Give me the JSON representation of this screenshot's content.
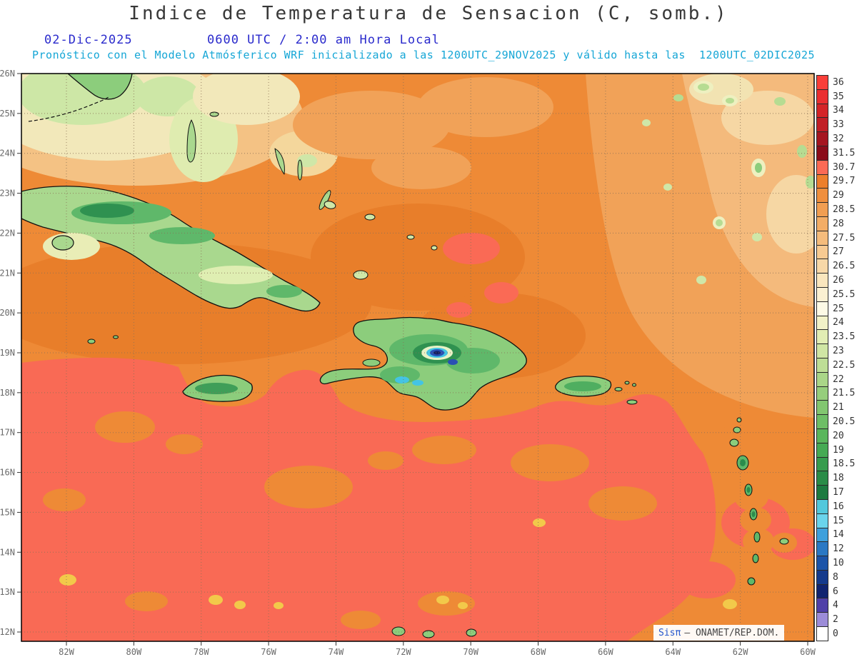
{
  "header": {
    "title": "Indice de Temperatura de Sensacion (C, somb.)",
    "date": "02-Dic-2025",
    "time_label": "0600 UTC / 2:00 am Hora Local",
    "forecast_line": "Pronóstico con el Modelo Atmósferico WRF inicializado a las 1200UTC_29NOV2025 y válido hasta las  1200UTC_02DIC2025"
  },
  "watermark": {
    "brand": "Sisπ",
    "text": "– ONAMET/REP.DOM."
  },
  "chart_data": {
    "type": "heatmap",
    "title": "Indice de Temperatura de Sensacion (C, somb.)",
    "units": "°C (sombra)",
    "model": "WRF",
    "x_axis": {
      "ticks": [
        "82W",
        "80W",
        "78W",
        "76W",
        "74W",
        "72W",
        "70W",
        "68W",
        "66W",
        "64W",
        "62W",
        "60W"
      ],
      "range_deg_w": [
        83.3,
        59.8
      ]
    },
    "y_axis": {
      "ticks": [
        "26N",
        "25N",
        "24N",
        "23N",
        "22N",
        "21N",
        "20N",
        "19N",
        "18N",
        "17N",
        "16N",
        "15N",
        "14N",
        "13N",
        "12N"
      ],
      "range_deg_n": [
        11.8,
        26.0
      ]
    },
    "grid": "dotted",
    "colorbar": {
      "position": "right",
      "entries": [
        {
          "label": "36",
          "color": "#f93f39"
        },
        {
          "label": "35",
          "color": "#ea2f31"
        },
        {
          "label": "34",
          "color": "#d42428"
        },
        {
          "label": "33",
          "color": "#c11f26"
        },
        {
          "label": "32",
          "color": "#a51520"
        },
        {
          "label": "31.5",
          "color": "#8b0c1a"
        },
        {
          "label": "30.7",
          "color": "#fa6a55"
        },
        {
          "label": "29.7",
          "color": "#ed7f2c"
        },
        {
          "label": "29",
          "color": "#ef8f3e"
        },
        {
          "label": "28.5",
          "color": "#f19e52"
        },
        {
          "label": "28",
          "color": "#f3ad66"
        },
        {
          "label": "27.5",
          "color": "#f5bc7c"
        },
        {
          "label": "27",
          "color": "#f7ca92"
        },
        {
          "label": "26.5",
          "color": "#f8d8a8"
        },
        {
          "label": "26",
          "color": "#fae6be"
        },
        {
          "label": "25.5",
          "color": "#fbf0d2"
        },
        {
          "label": "25",
          "color": "#fdfae6"
        },
        {
          "label": "24",
          "color": "#f2f2c8"
        },
        {
          "label": "23.5",
          "color": "#e2edb4"
        },
        {
          "label": "23",
          "color": "#d0e6a4"
        },
        {
          "label": "22.5",
          "color": "#bede96"
        },
        {
          "label": "22",
          "color": "#aad688"
        },
        {
          "label": "21.5",
          "color": "#96ce7c"
        },
        {
          "label": "21",
          "color": "#82c670"
        },
        {
          "label": "20.5",
          "color": "#6ebe66"
        },
        {
          "label": "20",
          "color": "#5ab65c"
        },
        {
          "label": "19",
          "color": "#46aa54"
        },
        {
          "label": "18.5",
          "color": "#379c4e"
        },
        {
          "label": "18",
          "color": "#2a8c48"
        },
        {
          "label": "17",
          "color": "#1d7a40"
        },
        {
          "label": "16",
          "color": "#52c8dc"
        },
        {
          "label": "15",
          "color": "#6ad4ec"
        },
        {
          "label": "14",
          "color": "#3ea0dc"
        },
        {
          "label": "12",
          "color": "#2a78c4"
        },
        {
          "label": "10",
          "color": "#1c54a8"
        },
        {
          "label": "8",
          "color": "#143a8c"
        },
        {
          "label": "6",
          "color": "#102470"
        },
        {
          "label": "4",
          "color": "#5040a8"
        },
        {
          "label": "2",
          "color": "#9c8cd8"
        },
        {
          "label": "0",
          "color": "#ffffff"
        }
      ]
    },
    "regions": [
      {
        "area": "Caribbean Sea south of ~18.5N (83W-66W)",
        "approx_value_c": "30.7-31.5"
      },
      {
        "area": "Waters around Cuba, Jamaica and north of Hispaniola (19N-24N)",
        "approx_value_c": "29-29.7"
      },
      {
        "area": "Open Atlantic northeast (66W-60W, 21N-26N)",
        "approx_value_c": "27.5-29"
      },
      {
        "area": "Florida Straits / northwest corner",
        "approx_value_c": "24-27"
      },
      {
        "area": "Cuba interior",
        "approx_value_c": "20-26"
      },
      {
        "area": "Jamaica interior",
        "approx_value_c": "19-23"
      },
      {
        "area": "Hispaniola lowlands",
        "approx_value_c": "18-23"
      },
      {
        "area": "Hispaniola Cordillera Central peaks",
        "approx_value_c": "4-14"
      },
      {
        "area": "Puerto Rico interior",
        "approx_value_c": "19-23"
      },
      {
        "area": "Lesser Antilles islands",
        "approx_value_c": "18-23"
      }
    ],
    "features_shown": [
      "Florida (tip)",
      "Bahamas",
      "Cuba",
      "Isla de la Juventud",
      "Cayman Islands",
      "Jamaica",
      "Hispaniola",
      "Puerto Rico",
      "Virgin Islands",
      "Lesser Antilles"
    ]
  }
}
